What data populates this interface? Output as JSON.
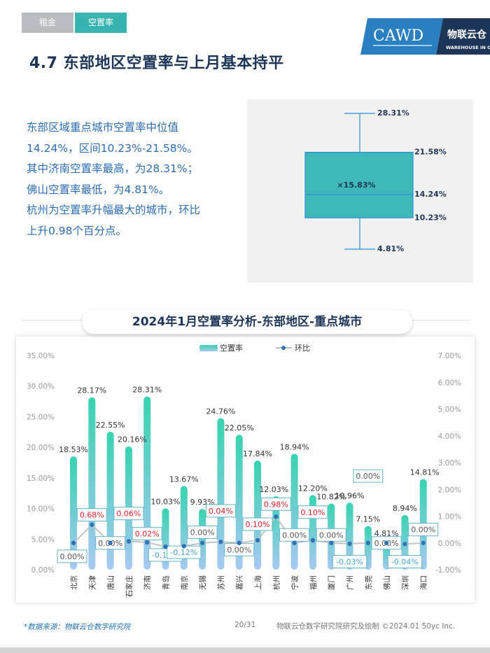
{
  "tabs": [
    {
      "label": "租金",
      "active": false
    },
    {
      "label": "空置率",
      "active": true
    }
  ],
  "logo": {
    "text": "CAWD",
    "brand": "物联云仓",
    "sub": "WAREHOUSE IN CLOUD"
  },
  "header": {
    "title": "4.7 东部地区空置率与上月基本持平"
  },
  "summary": {
    "lines": [
      "东部区域重点城市空置率中位值",
      "14.24%，区间10.23%-21.58%。",
      "其中济南空置率最高，为28.31%；",
      "佛山空置率最低，为4.81%。",
      "杭州为空置率升幅最大的城市，环比",
      "上升0.98个百分点。"
    ]
  },
  "boxplot": {
    "max": 28.31,
    "q3": 21.58,
    "median": 14.24,
    "mean": 15.83,
    "q1": 10.23,
    "min": 4.81,
    "labels": {
      "max": "28.31%",
      "q3": "21.58%",
      "median": "14.24%",
      "mean": "×15.83%",
      "q1": "10.23%",
      "min": "4.81%"
    }
  },
  "colors": {
    "accent": "#37b3b0",
    "navy": "#1d3557",
    "blue_text": "#2b6db3",
    "red": "#e0202c",
    "teal_label": "#3fa7c4",
    "dot": "#2f73b8"
  },
  "chart_data": {
    "type": "bar",
    "title": "2024年1月空置率分析-东部地区-重点城市",
    "legend": [
      "空置率",
      "环比"
    ],
    "legend_position": "top-center",
    "categories": [
      "北京",
      "天津",
      "唐山",
      "石家庄",
      "济南",
      "青岛",
      "南京",
      "无锡",
      "苏州",
      "嘉兴",
      "上海",
      "杭州",
      "宁波",
      "福州",
      "厦门",
      "广州",
      "东莞",
      "佛山",
      "深圳",
      "海口"
    ],
    "series": [
      {
        "name": "空置率",
        "type": "bar",
        "axis": "left",
        "values": [
          18.53,
          28.17,
          22.55,
          20.16,
          28.31,
          10.03,
          13.67,
          9.93,
          24.76,
          22.05,
          17.84,
          12.03,
          18.94,
          12.2,
          10.82,
          10.96,
          7.15,
          4.81,
          8.94,
          14.81
        ],
        "labels": [
          "18.53%",
          "28.17%",
          "22.55%",
          "20.16%",
          "28.31%",
          "10.03%",
          "13.67%",
          "9.93%",
          "24.76%",
          "22.05%",
          "17.84%",
          "12.03%",
          "18.94%",
          "12.20%",
          "10.82%",
          "10.96%",
          "7.15%",
          "4.81%",
          "8.94%",
          "14.81%"
        ]
      },
      {
        "name": "环比",
        "type": "line",
        "axis": "right",
        "values": [
          0.0,
          0.68,
          0.0,
          0.06,
          0.02,
          -0.14,
          -0.12,
          0.0,
          0.04,
          0.0,
          0.1,
          0.98,
          0.0,
          0.1,
          0.0,
          -0.03,
          0.0,
          0.0,
          -0.04,
          0.0
        ],
        "labels": [
          "0.00%",
          "0.68%",
          "0.00%",
          "0.06%",
          "0.02%",
          "-0.14%",
          "-0.12%",
          "0.00%",
          "0.04%",
          "0.00%",
          "0.10%",
          "0.98%",
          "0.00%",
          "0.10%",
          "0.00%",
          "-0.03%",
          "0.00%",
          "0.00%",
          "-0.04%",
          "0.00%"
        ]
      }
    ],
    "y_left": {
      "min": 0,
      "max": 35,
      "step": 5,
      "ticks": [
        "0.00%",
        "5.00%",
        "10.00%",
        "15.00%",
        "20.00%",
        "25.00%",
        "30.00%",
        "35.00%"
      ]
    },
    "y_right": {
      "min": -1,
      "max": 7,
      "step": 1,
      "ticks": [
        "-1.00%",
        "0.00%",
        "1.00%",
        "2.00%",
        "3.00%",
        "4.00%",
        "5.00%",
        "6.00%",
        "7.00%"
      ]
    },
    "grid": false
  },
  "footer": {
    "source": "*数据来源：物联云仓数字研究院",
    "page": "20/31",
    "right": "物联云仓数字研究院研究及绘制    ©2024.01 50yc Inc."
  }
}
